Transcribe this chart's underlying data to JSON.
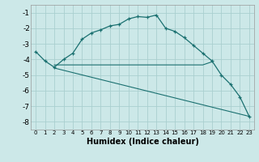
{
  "xlabel": "Humidex (Indice chaleur)",
  "background_color": "#cce8e8",
  "grid_color": "#aacfcf",
  "line_color": "#1a7070",
  "xlim": [
    -0.5,
    23.5
  ],
  "ylim": [
    -8.5,
    -0.5
  ],
  "yticks": [
    -8,
    -7,
    -6,
    -5,
    -4,
    -3,
    -2,
    -1
  ],
  "line1_x": [
    0,
    1,
    2,
    3,
    4,
    5,
    6,
    7,
    8,
    9,
    10,
    11,
    12,
    13,
    14,
    15,
    16,
    17,
    18,
    19,
    20,
    21,
    22,
    23
  ],
  "line1_y": [
    -3.5,
    -4.1,
    -4.5,
    -4.0,
    -3.6,
    -2.7,
    -2.3,
    -2.1,
    -1.85,
    -1.75,
    -1.4,
    -1.25,
    -1.3,
    -1.15,
    -2.0,
    -2.2,
    -2.6,
    -3.1,
    -3.6,
    -4.1,
    -5.0,
    -5.6,
    -6.4,
    -7.65
  ],
  "line2_x": [
    2,
    3,
    4,
    5,
    6,
    7,
    8,
    9,
    10,
    11,
    12,
    13,
    14,
    15,
    16,
    17,
    18,
    19
  ],
  "line2_y": [
    -4.35,
    -4.35,
    -4.35,
    -4.35,
    -4.35,
    -4.35,
    -4.35,
    -4.35,
    -4.35,
    -4.35,
    -4.35,
    -4.35,
    -4.35,
    -4.35,
    -4.35,
    -4.35,
    -4.35,
    -4.15
  ],
  "line3_x": [
    2,
    23
  ],
  "line3_y": [
    -4.55,
    -7.65
  ],
  "xtick_labels": [
    "0",
    "1",
    "2",
    "3",
    "4",
    "5",
    "6",
    "7",
    "8",
    "9",
    "10",
    "11",
    "12",
    "13",
    "14",
    "15",
    "16",
    "17",
    "18",
    "19",
    "20",
    "21",
    "22",
    "23"
  ]
}
